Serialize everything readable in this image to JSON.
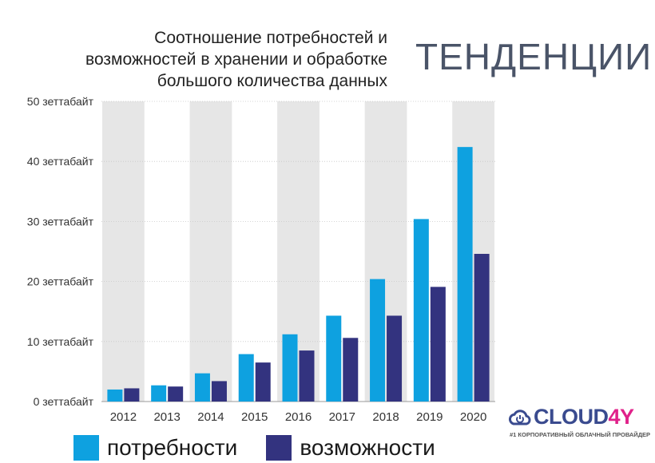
{
  "header": {
    "title_lines": [
      "Соотношение потребностей и",
      "возможностей в хранении и обработке",
      "большого количества данных"
    ],
    "heading": "ТЕНДЕНЦИИ"
  },
  "brand": {
    "name_main": "CLOUD",
    "name_accent": "4Y",
    "tagline": "#1 КОРПОРАТИВНЫЙ ОБЛАЧНЫЙ ПРОВАЙДЕР",
    "icon": "cloud-power-icon"
  },
  "colors": {
    "needs": "#0ea1e0",
    "capacity": "#33337f",
    "band": "#e6e6e6",
    "axis_text": "#333333",
    "brand_blue": "#3a4b8f",
    "brand_pink": "#e0218a"
  },
  "chart_data": {
    "type": "bar",
    "categories": [
      "2012",
      "2013",
      "2014",
      "2015",
      "2016",
      "2017",
      "2018",
      "2019",
      "2020"
    ],
    "series": [
      {
        "name": "потребности",
        "values": [
          2,
          2.7,
          4.7,
          7.9,
          11.2,
          14.3,
          20.4,
          30.4,
          42.4
        ]
      },
      {
        "name": "возможности",
        "values": [
          2.2,
          2.5,
          3.4,
          6.5,
          8.5,
          10.6,
          14.3,
          19.1,
          24.6
        ]
      }
    ],
    "ylim": [
      0,
      50
    ],
    "yticks": [
      0,
      10,
      20,
      30,
      40,
      50
    ],
    "ytick_labels": [
      "0 зеттабайт",
      "10 зеттабайт",
      "20 зеттабайт",
      "30 зеттабайт",
      "40 зеттабайт",
      "50 зеттабайт"
    ],
    "grid": true,
    "alternating_bands": true,
    "legend_position": "bottom"
  }
}
